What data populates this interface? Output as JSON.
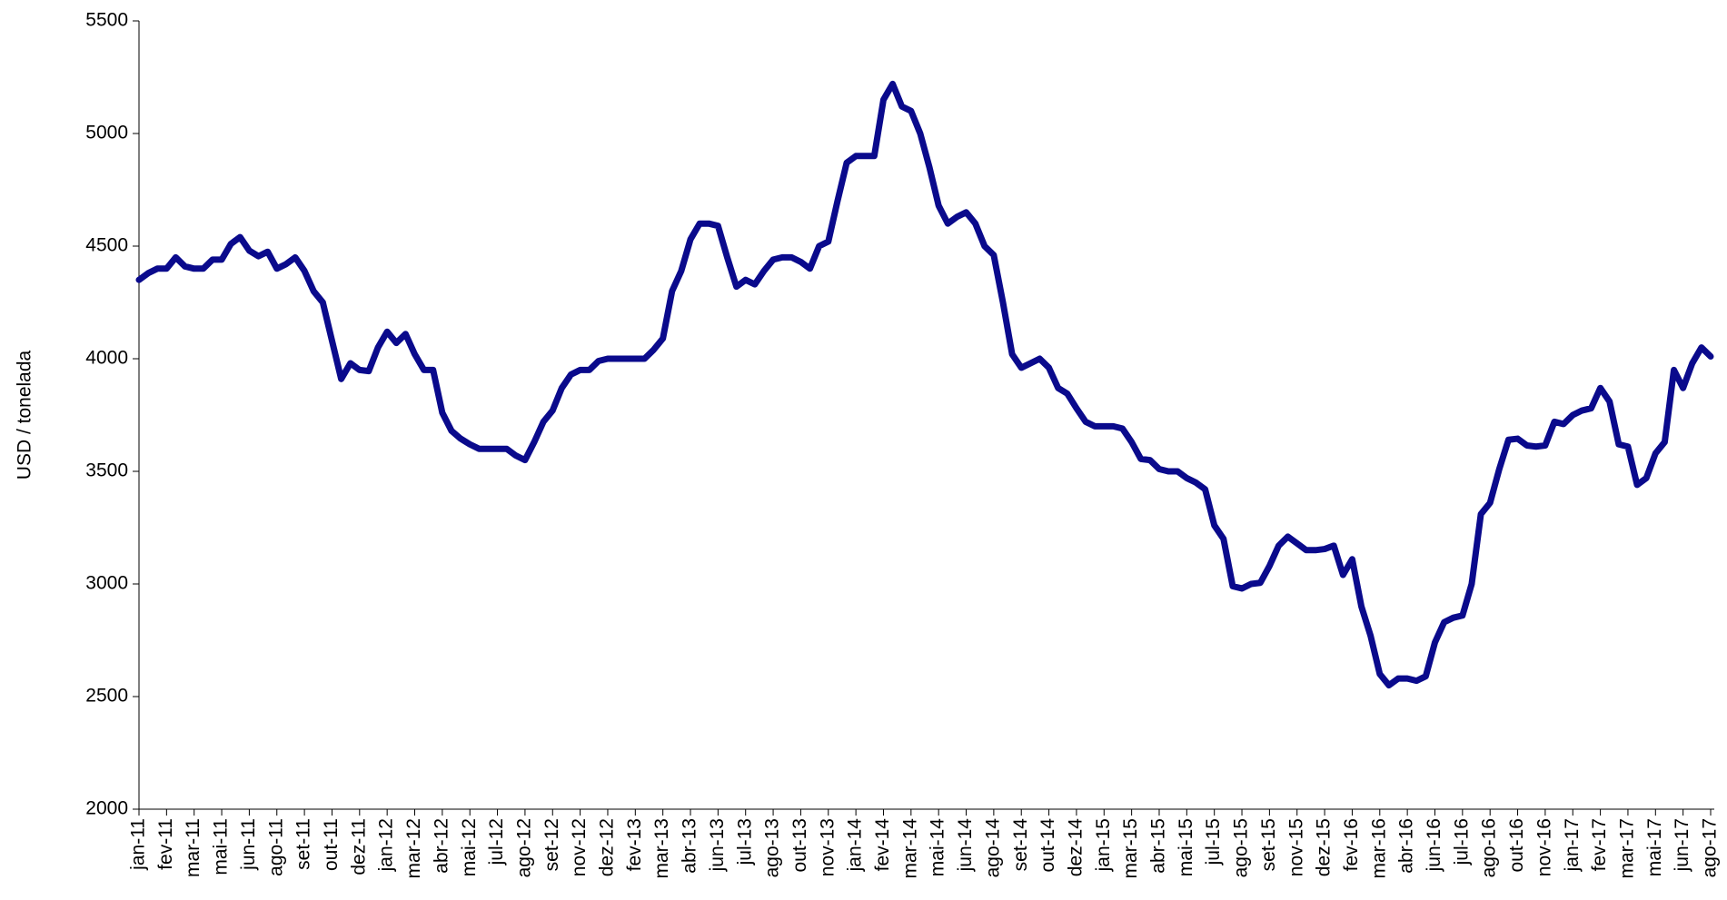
{
  "chart_data": {
    "type": "line",
    "y_label": "USD / tonelada",
    "color": "#0a0a8c",
    "ylim": [
      2000,
      5500
    ],
    "yticks": [
      2000,
      2500,
      3000,
      3500,
      4000,
      4500,
      5000,
      5500
    ],
    "categories": [
      "jan-11",
      null,
      null,
      "fev-11",
      null,
      null,
      "mar-11",
      null,
      null,
      "mai-11",
      null,
      null,
      "jun-11",
      null,
      null,
      "ago-11",
      null,
      null,
      "set-11",
      null,
      null,
      "out-11",
      null,
      null,
      "dez-11",
      null,
      null,
      "jan-12",
      null,
      null,
      "mar-12",
      null,
      null,
      "abr-12",
      null,
      null,
      "mai-12",
      null,
      null,
      "jul-12",
      null,
      null,
      "ago-12",
      null,
      null,
      "set-12",
      null,
      null,
      "nov-12",
      null,
      null,
      "dez-12",
      null,
      null,
      "fev-13",
      null,
      null,
      "mar-13",
      null,
      null,
      "abr-13",
      null,
      null,
      "jun-13",
      null,
      null,
      "jul-13",
      null,
      null,
      "ago-13",
      null,
      null,
      "out-13",
      null,
      null,
      "nov-13",
      null,
      null,
      "jan-14",
      null,
      null,
      "fev-14",
      null,
      null,
      "mar-14",
      null,
      null,
      "mai-14",
      null,
      null,
      "jun-14",
      null,
      null,
      "ago-14",
      null,
      null,
      "set-14",
      null,
      null,
      "out-14",
      null,
      null,
      "dez-14",
      null,
      null,
      "jan-15",
      null,
      null,
      "mar-15",
      null,
      null,
      "abr-15",
      null,
      null,
      "mai-15",
      null,
      null,
      "jul-15",
      null,
      null,
      "ago-15",
      null,
      null,
      "set-15",
      null,
      null,
      "nov-15",
      null,
      null,
      "dez-15",
      null,
      null,
      "fev-16",
      null,
      null,
      "mar-16",
      null,
      null,
      "abr-16",
      null,
      null,
      "jun-16",
      null,
      null,
      "jul-16",
      null,
      null,
      "ago-16",
      null,
      null,
      "out-16",
      null,
      null,
      "nov-16",
      null,
      null,
      "jan-17",
      null,
      null,
      "fev-17",
      null,
      null,
      "mar-17",
      null,
      null,
      "mai-17",
      null,
      null,
      "jun-17",
      null,
      null,
      "ago-17"
    ],
    "values": [
      4350,
      4380,
      4400,
      4400,
      4450,
      4410,
      4400,
      4400,
      4440,
      4440,
      4510,
      4540,
      4480,
      4455,
      4475,
      4400,
      4420,
      4450,
      4390,
      4300,
      4250,
      4080,
      3910,
      3980,
      3950,
      3945,
      4050,
      4120,
      4070,
      4110,
      4020,
      3950,
      3950,
      3760,
      3680,
      3645,
      3620,
      3600,
      3600,
      3600,
      3600,
      3570,
      3550,
      3630,
      3720,
      3770,
      3870,
      3930,
      3950,
      3950,
      3990,
      4000,
      4000,
      4000,
      4000,
      4000,
      4040,
      4090,
      4300,
      4390,
      4530,
      4600,
      4600,
      4590,
      4450,
      4320,
      4350,
      4330,
      4390,
      4440,
      4450,
      4450,
      4430,
      4400,
      4500,
      4520,
      4700,
      4870,
      4900,
      4900,
      4900,
      5150,
      5220,
      5120,
      5100,
      5000,
      4850,
      4680,
      4600,
      4630,
      4650,
      4600,
      4500,
      4460,
      4250,
      4020,
      3960,
      3980,
      4000,
      3960,
      3870,
      3845,
      3780,
      3720,
      3700,
      3700,
      3700,
      3690,
      3630,
      3555,
      3550,
      3510,
      3500,
      3500,
      3470,
      3450,
      3420,
      3260,
      3200,
      2990,
      2980,
      3000,
      3005,
      3080,
      3170,
      3210,
      3180,
      3150,
      3150,
      3155,
      3170,
      3040,
      3110,
      2900,
      2770,
      2600,
      2550,
      2580,
      2580,
      2570,
      2590,
      2740,
      2830,
      2850,
      2860,
      3000,
      3310,
      3360,
      3510,
      3640,
      3645,
      3615,
      3610,
      3615,
      3720,
      3710,
      3750,
      3770,
      3780,
      3870,
      3810,
      3620,
      3610,
      3440,
      3470,
      3580,
      3630,
      3950,
      3870,
      3980,
      4050,
      4010
    ]
  }
}
